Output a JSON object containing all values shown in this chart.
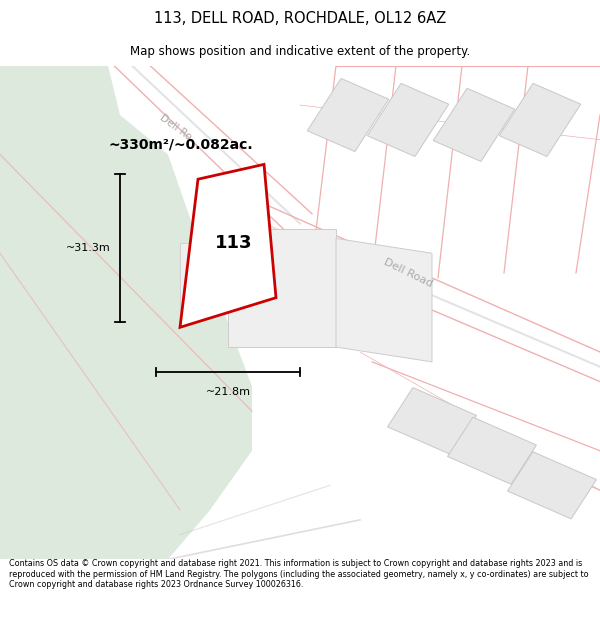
{
  "title_line1": "113, DELL ROAD, ROCHDALE, OL12 6AZ",
  "title_line2": "Map shows position and indicative extent of the property.",
  "area_label": "~330m²/~0.082ac.",
  "property_number": "113",
  "dim_width": "~21.8m",
  "dim_height": "~31.3m",
  "footer_text": "Contains OS data © Crown copyright and database right 2021. This information is subject to Crown copyright and database rights 2023 and is reproduced with the permission of HM Land Registry. The polygons (including the associated geometry, namely x, y co-ordinates) are subject to Crown copyright and database rights 2023 Ordnance Survey 100026316.",
  "bg_color": "#ffffff",
  "map_bg": "#f8f8f8",
  "green_color": "#dce9dc",
  "property_color": "#cc0000",
  "building_fill": "#e8e8e8",
  "building_edge": "#c8c8c8",
  "plot_fill": "#efefef",
  "plot_edge": "#cccccc",
  "road_pink": "#f0b0b0",
  "road_grey": "#c8c8c8",
  "road_label_color": "#aaaaaa",
  "dim_line_color": "#000000",
  "text_color": "#000000"
}
